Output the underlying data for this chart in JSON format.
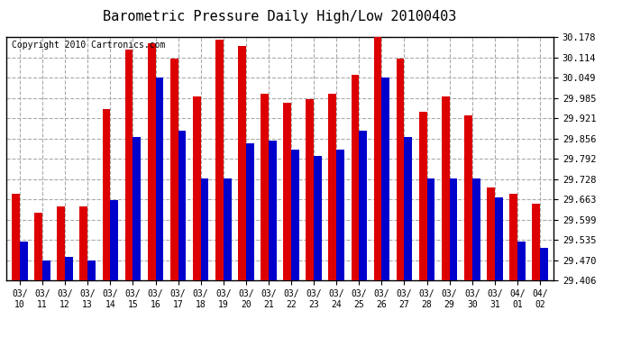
{
  "title": "Barometric Pressure Daily High/Low 20100403",
  "copyright": "Copyright 2010 Cartronics.com",
  "dates": [
    "03/10",
    "03/11",
    "03/12",
    "03/13",
    "03/14",
    "03/15",
    "03/16",
    "03/17",
    "03/18",
    "03/19",
    "03/20",
    "03/21",
    "03/22",
    "03/23",
    "03/24",
    "03/25",
    "03/26",
    "03/27",
    "03/28",
    "03/29",
    "03/30",
    "03/31",
    "04/01",
    "04/02"
  ],
  "highs": [
    29.68,
    29.62,
    29.64,
    29.64,
    29.95,
    30.14,
    30.16,
    30.11,
    29.99,
    30.17,
    30.15,
    30.0,
    29.97,
    29.98,
    30.0,
    30.06,
    30.18,
    30.11,
    29.94,
    29.99,
    29.93,
    29.7,
    29.68,
    29.65
  ],
  "lows": [
    29.53,
    29.47,
    29.48,
    29.47,
    29.66,
    29.86,
    30.05,
    29.88,
    29.73,
    29.73,
    29.84,
    29.85,
    29.82,
    29.8,
    29.82,
    29.88,
    30.05,
    29.86,
    29.73,
    29.73,
    29.73,
    29.67,
    29.53,
    29.51
  ],
  "ymin": 29.406,
  "ymax": 30.178,
  "yticks": [
    29.406,
    29.47,
    29.535,
    29.599,
    29.663,
    29.728,
    29.792,
    29.856,
    29.921,
    29.985,
    30.049,
    30.114,
    30.178
  ],
  "high_color": "#dd0000",
  "low_color": "#0000cc",
  "background_color": "#ffffff",
  "grid_color": "#aaaaaa",
  "title_fontsize": 11,
  "copyright_fontsize": 7
}
